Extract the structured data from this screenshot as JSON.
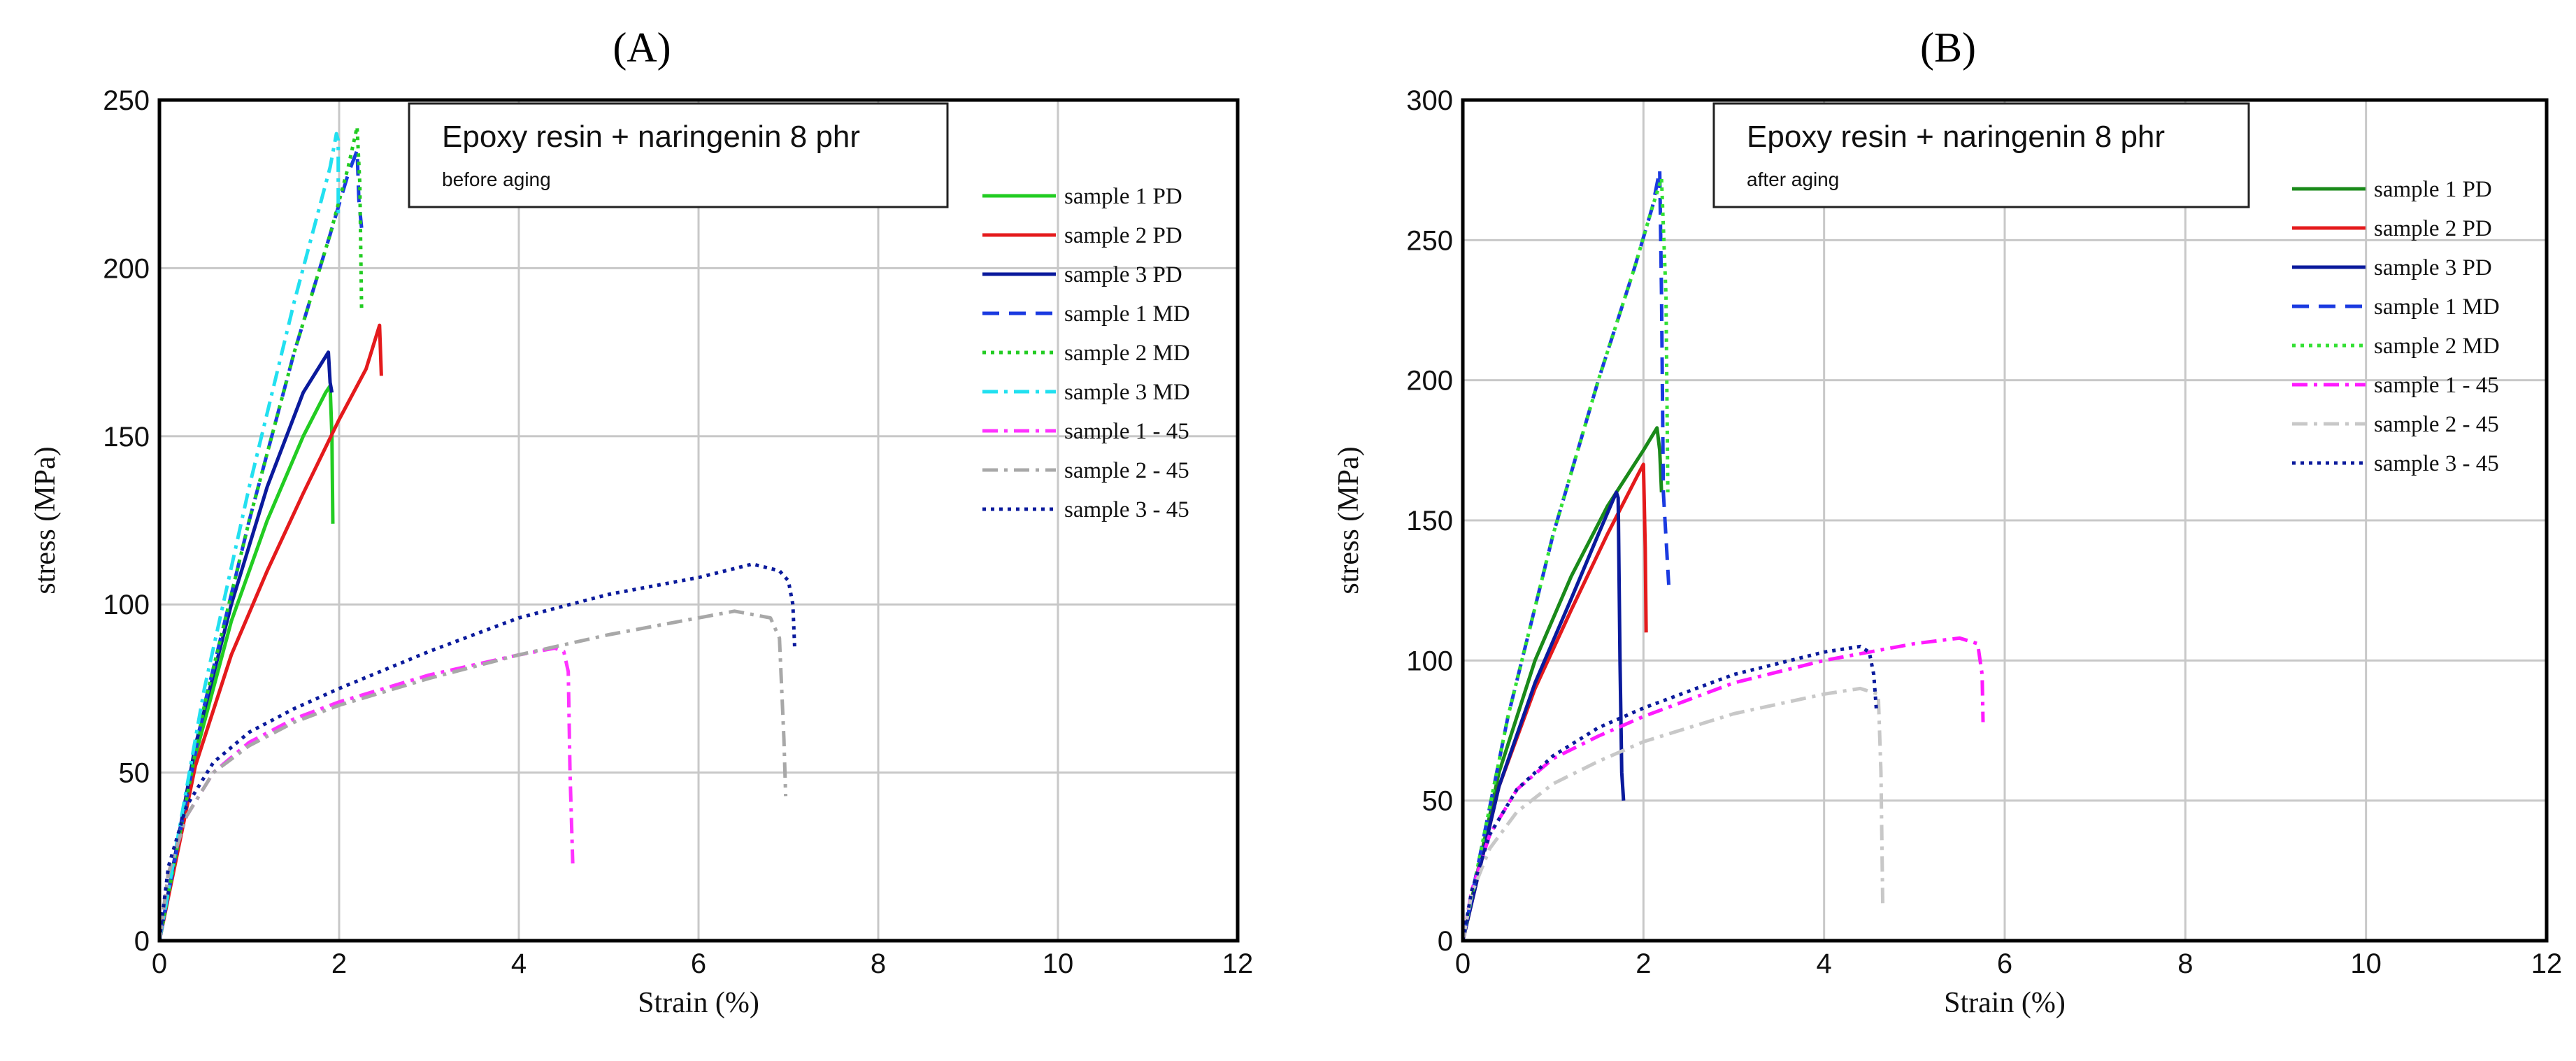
{
  "chart_data": [
    {
      "type": "line",
      "panel_label": "(A)",
      "title": "Epoxy resin + naringenin 8 phr",
      "subtitle": "before aging",
      "xlabel": "Strain (%)",
      "ylabel": "stress (MPa)",
      "xlim": [
        0,
        12
      ],
      "ylim": [
        0,
        250
      ],
      "xticks": [
        0,
        2,
        4,
        6,
        8,
        10,
        12
      ],
      "yticks": [
        0,
        50,
        100,
        150,
        200,
        250
      ],
      "grid": true,
      "legend_position": "right",
      "series": [
        {
          "name": "sample 1 PD",
          "color": "#22cc22",
          "dash": "solid",
          "x": [
            0,
            0.4,
            0.8,
            1.2,
            1.6,
            1.85,
            1.9,
            1.92,
            1.93
          ],
          "y": [
            0,
            55,
            95,
            125,
            150,
            163,
            165,
            150,
            124
          ]
        },
        {
          "name": "sample 2 PD",
          "color": "#e41a1c",
          "dash": "solid",
          "x": [
            0,
            0.4,
            0.8,
            1.2,
            1.6,
            2.0,
            2.3,
            2.45,
            2.47
          ],
          "y": [
            0,
            52,
            85,
            110,
            133,
            155,
            170,
            183,
            168
          ]
        },
        {
          "name": "sample 3 PD",
          "color": "#0a1a9c",
          "dash": "solid",
          "x": [
            0,
            0.4,
            0.8,
            1.2,
            1.6,
            1.88,
            1.9,
            1.92
          ],
          "y": [
            0,
            58,
            100,
            135,
            163,
            175,
            166,
            163
          ]
        },
        {
          "name": "sample 1 MD",
          "color": "#1a3ae0",
          "dash": "dash",
          "x": [
            0,
            0.5,
            1.0,
            1.5,
            1.9,
            2.1,
            2.2,
            2.22,
            2.25
          ],
          "y": [
            0,
            70,
            125,
            175,
            210,
            228,
            235,
            220,
            212
          ]
        },
        {
          "name": "sample 2 MD",
          "color": "#22cc22",
          "dash": "dot",
          "x": [
            0,
            0.5,
            1.0,
            1.5,
            1.9,
            2.1,
            2.2,
            2.23,
            2.25
          ],
          "y": [
            0,
            70,
            125,
            175,
            210,
            230,
            242,
            225,
            188
          ]
        },
        {
          "name": "sample 3 MD",
          "color": "#22e0f0",
          "dash": "dashdot",
          "x": [
            0,
            0.5,
            1.0,
            1.5,
            1.9,
            1.97,
            1.99,
            1.99
          ],
          "y": [
            0,
            75,
            135,
            190,
            230,
            240,
            238,
            215
          ]
        },
        {
          "name": "sample 1 - 45",
          "color": "#ff33ff",
          "dash": "dashdot",
          "x": [
            0,
            0.1,
            0.3,
            0.6,
            1.0,
            1.5,
            2.0,
            2.5,
            3.0,
            3.5,
            4.0,
            4.4,
            4.5,
            4.55,
            4.57,
            4.6
          ],
          "y": [
            0,
            20,
            37,
            50,
            59,
            66,
            71,
            75,
            79,
            82,
            85,
            87,
            86,
            80,
            50,
            23
          ]
        },
        {
          "name": "sample 2 - 45",
          "color": "#a8a8a8",
          "dash": "dashdot",
          "x": [
            0,
            0.1,
            0.3,
            0.6,
            1.0,
            1.5,
            2.0,
            3.0,
            4.0,
            5.0,
            6.0,
            6.4,
            6.8,
            6.9,
            6.95,
            6.97
          ],
          "y": [
            0,
            20,
            37,
            50,
            58,
            65,
            70,
            78,
            85,
            91,
            96,
            98,
            96,
            90,
            60,
            43
          ]
        },
        {
          "name": "sample 3 - 45",
          "color": "#0a1a9c",
          "dash": "dot",
          "x": [
            0,
            0.1,
            0.3,
            0.6,
            1.0,
            1.5,
            2.0,
            3.0,
            4.0,
            5.0,
            6.0,
            6.6,
            6.9,
            7.0,
            7.05,
            7.07
          ],
          "y": [
            0,
            22,
            40,
            53,
            62,
            69,
            75,
            86,
            96,
            103,
            108,
            112,
            110,
            107,
            100,
            87
          ]
        }
      ]
    },
    {
      "type": "line",
      "panel_label": "(B)",
      "title": "Epoxy resin + naringenin 8 phr",
      "subtitle": "after aging",
      "xlabel": "Strain (%)",
      "ylabel": "stress (MPa)",
      "xlim": [
        0,
        12
      ],
      "ylim": [
        0,
        300
      ],
      "xticks": [
        0,
        2,
        4,
        6,
        8,
        10,
        12
      ],
      "yticks": [
        0,
        50,
        100,
        150,
        200,
        250,
        300
      ],
      "grid": true,
      "legend_position": "right",
      "series": [
        {
          "name": "sample 1 PD",
          "color": "#1a8a1a",
          "dash": "solid",
          "x": [
            0,
            0.4,
            0.8,
            1.2,
            1.6,
            2.0,
            2.15,
            2.18,
            2.2
          ],
          "y": [
            0,
            60,
            100,
            130,
            155,
            175,
            183,
            175,
            160
          ]
        },
        {
          "name": "sample 2 PD",
          "color": "#e41a1c",
          "dash": "solid",
          "x": [
            0,
            0.4,
            0.8,
            1.2,
            1.6,
            1.95,
            2.0,
            2.02,
            2.03
          ],
          "y": [
            0,
            55,
            90,
            118,
            145,
            167,
            170,
            140,
            110
          ]
        },
        {
          "name": "sample 3 PD",
          "color": "#0a1a9c",
          "dash": "solid",
          "x": [
            0,
            0.4,
            0.8,
            1.2,
            1.5,
            1.7,
            1.72,
            1.74,
            1.76,
            1.78
          ],
          "y": [
            0,
            55,
            92,
            122,
            145,
            160,
            158,
            100,
            60,
            50
          ]
        },
        {
          "name": "sample 1 MD",
          "color": "#1a3ae0",
          "dash": "dash",
          "x": [
            0,
            0.5,
            1.0,
            1.5,
            1.9,
            2.1,
            2.18,
            2.2,
            2.22,
            2.28
          ],
          "y": [
            0,
            80,
            145,
            200,
            240,
            262,
            275,
            230,
            160,
            127
          ]
        },
        {
          "name": "sample 2 MD",
          "color": "#33e033",
          "dash": "dot",
          "x": [
            0,
            0.5,
            1.0,
            1.5,
            1.9,
            2.1,
            2.2,
            2.25,
            2.27
          ],
          "y": [
            0,
            80,
            145,
            200,
            240,
            262,
            272,
            230,
            160
          ]
        },
        {
          "name": "sample 1 - 45",
          "color": "#ff1aff",
          "dash": "dashdot",
          "x": [
            0,
            0.1,
            0.3,
            0.6,
            1.0,
            1.5,
            2.0,
            3.0,
            4.0,
            5.0,
            5.5,
            5.7,
            5.75,
            5.76
          ],
          "y": [
            0,
            18,
            38,
            54,
            65,
            73,
            80,
            92,
            100,
            106,
            108,
            106,
            95,
            78
          ]
        },
        {
          "name": "sample 2 - 45",
          "color": "#c8c8c8",
          "dash": "dashdot",
          "x": [
            0,
            0.1,
            0.3,
            0.6,
            1.0,
            1.5,
            2.0,
            3.0,
            4.0,
            4.4,
            4.6,
            4.63,
            4.65
          ],
          "y": [
            0,
            17,
            33,
            46,
            56,
            64,
            71,
            81,
            88,
            90,
            88,
            60,
            12
          ]
        },
        {
          "name": "sample 3 - 45",
          "color": "#0a1a9c",
          "dash": "dot",
          "x": [
            0,
            0.1,
            0.3,
            0.6,
            1.0,
            1.5,
            2.0,
            3.0,
            4.0,
            4.4,
            4.5,
            4.55,
            4.58
          ],
          "y": [
            0,
            18,
            38,
            54,
            66,
            76,
            83,
            95,
            103,
            105,
            103,
            95,
            82
          ]
        }
      ]
    }
  ]
}
